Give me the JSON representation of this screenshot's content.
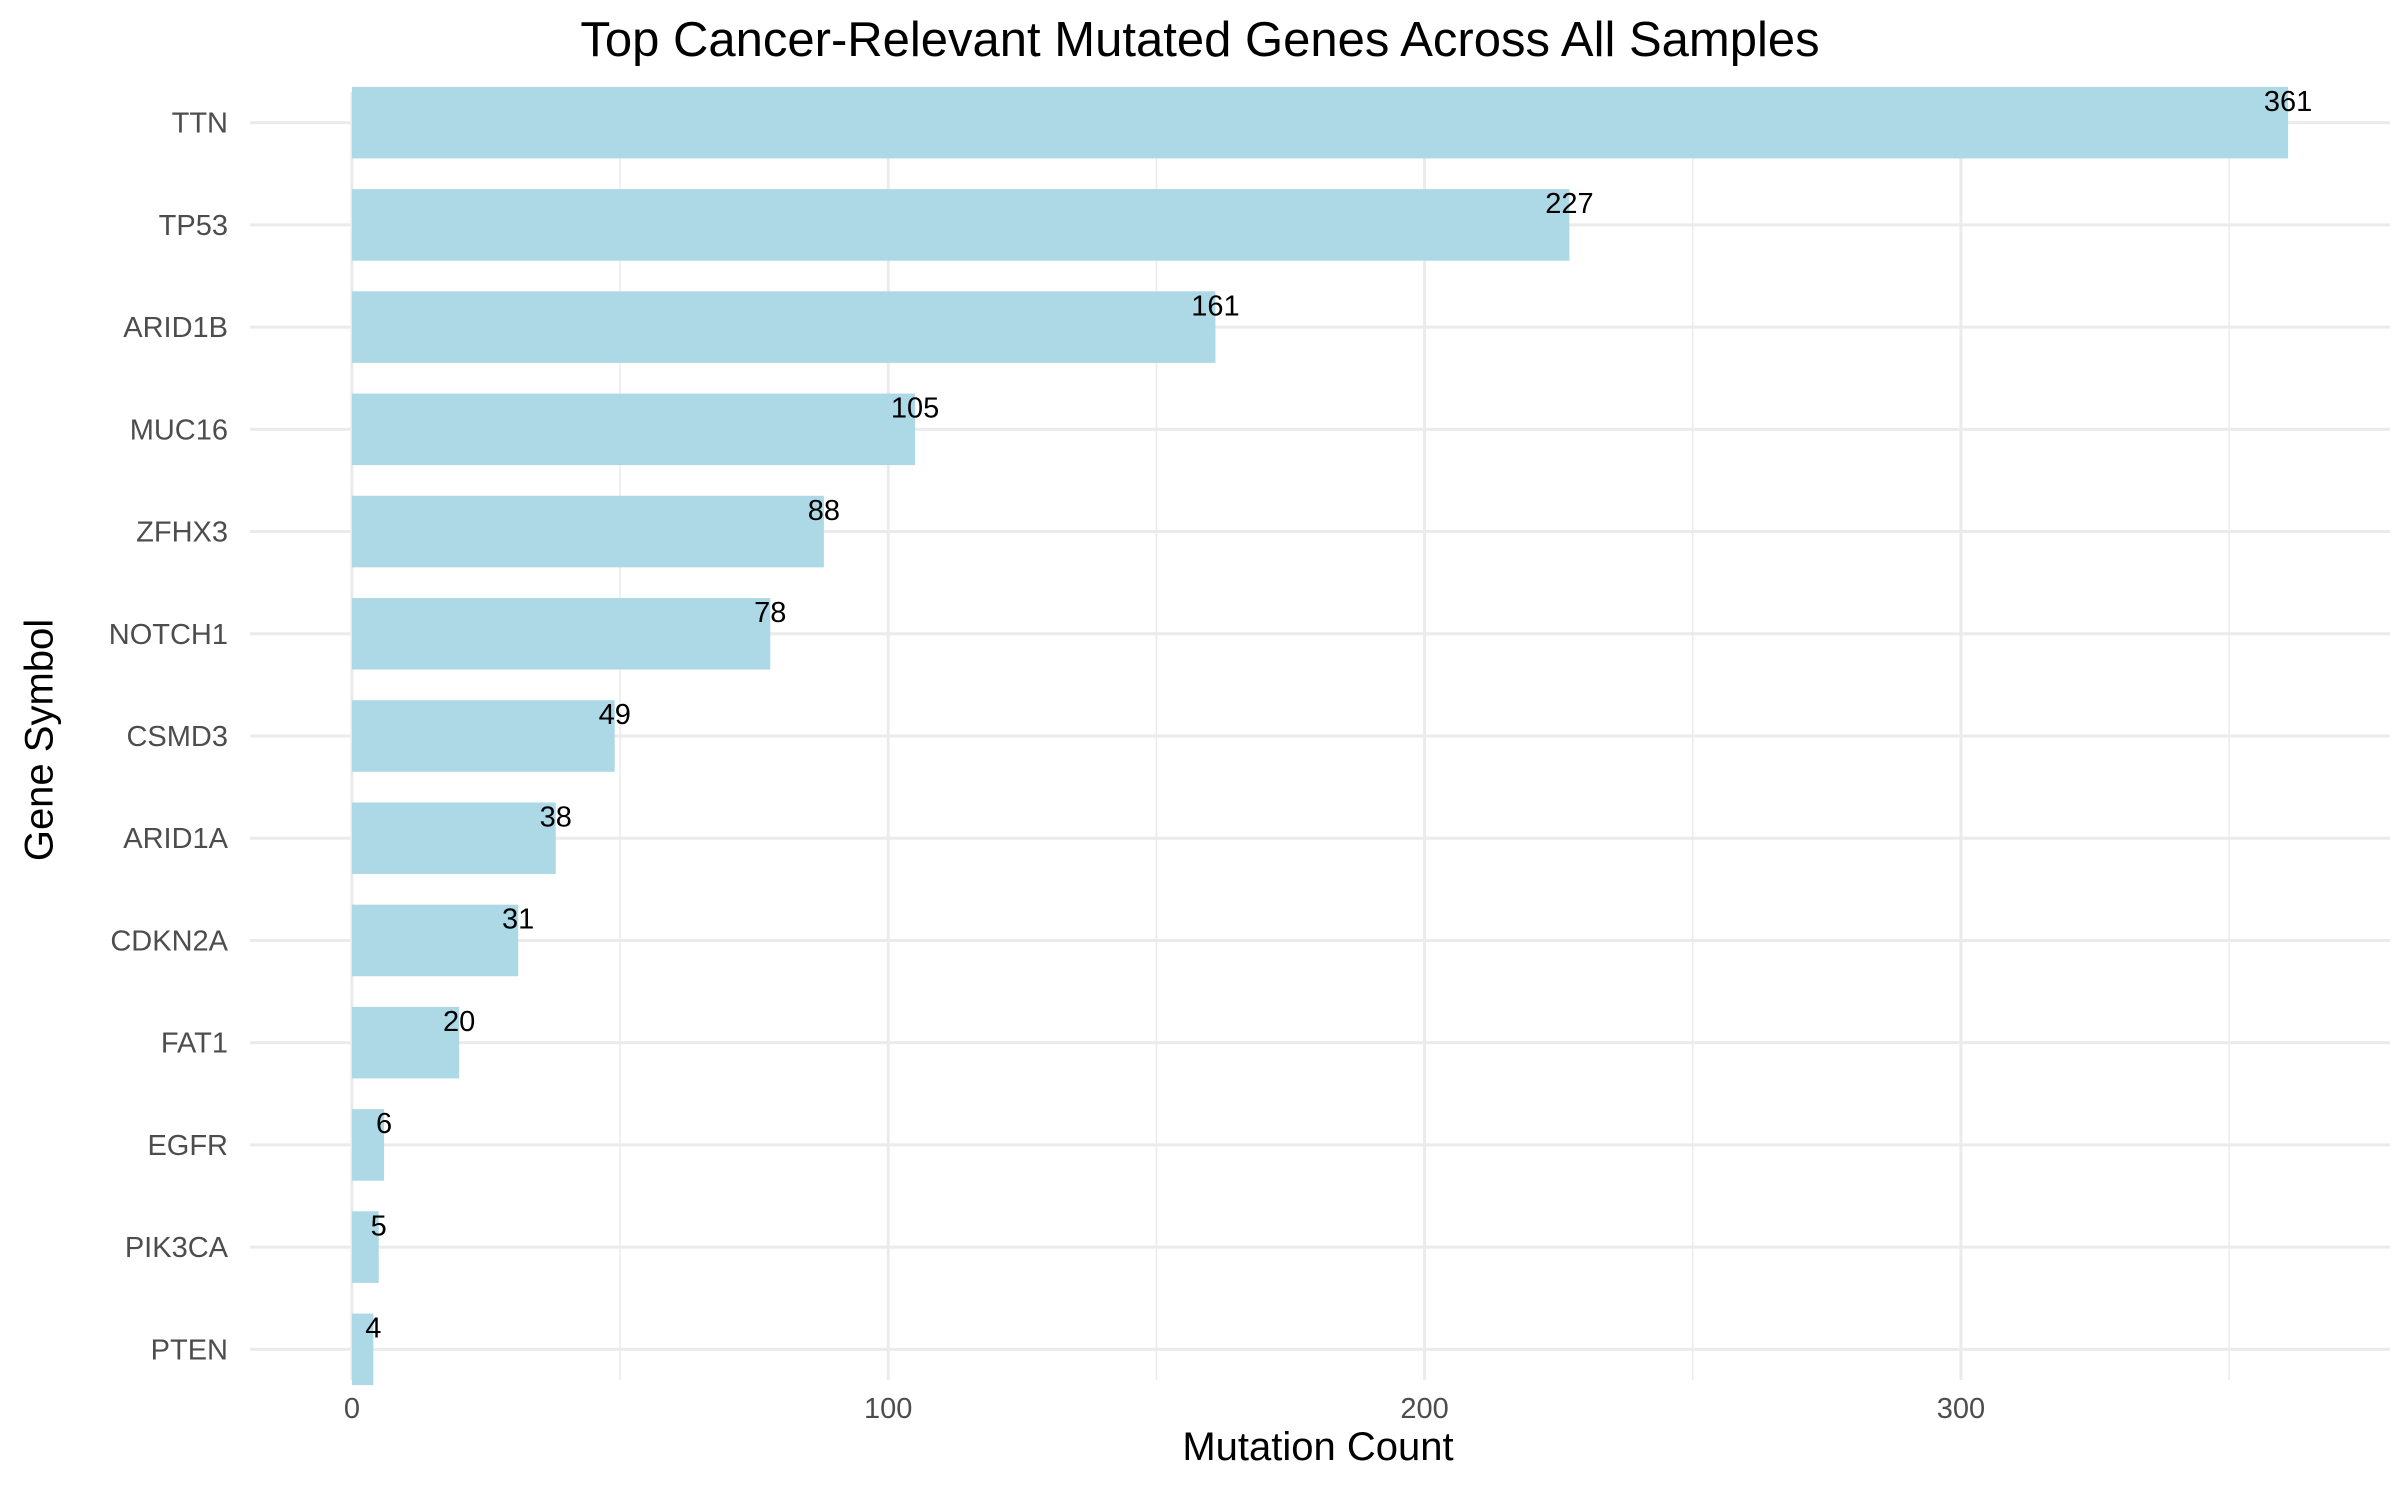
{
  "chart_data": {
    "type": "bar",
    "orientation": "horizontal",
    "title": "Top Cancer-Relevant Mutated Genes Across All Samples",
    "xlabel": "Mutation Count",
    "ylabel": "Gene Symbol",
    "categories": [
      "TTN",
      "TP53",
      "ARID1B",
      "MUC16",
      "ZFHX3",
      "NOTCH1",
      "CSMD3",
      "ARID1A",
      "CDKN2A",
      "FAT1",
      "EGFR",
      "PIK3CA",
      "PTEN"
    ],
    "values": [
      361,
      227,
      161,
      105,
      88,
      78,
      49,
      38,
      31,
      20,
      6,
      5,
      4
    ],
    "xlim": [
      -19,
      380
    ],
    "xticks": [
      0,
      100,
      200,
      300
    ],
    "minor_xticks": [
      50,
      150,
      250,
      350
    ],
    "grid": true,
    "legend": "none",
    "bar_color": "#ADD8E6",
    "grid_color": "#EBEBEB"
  }
}
